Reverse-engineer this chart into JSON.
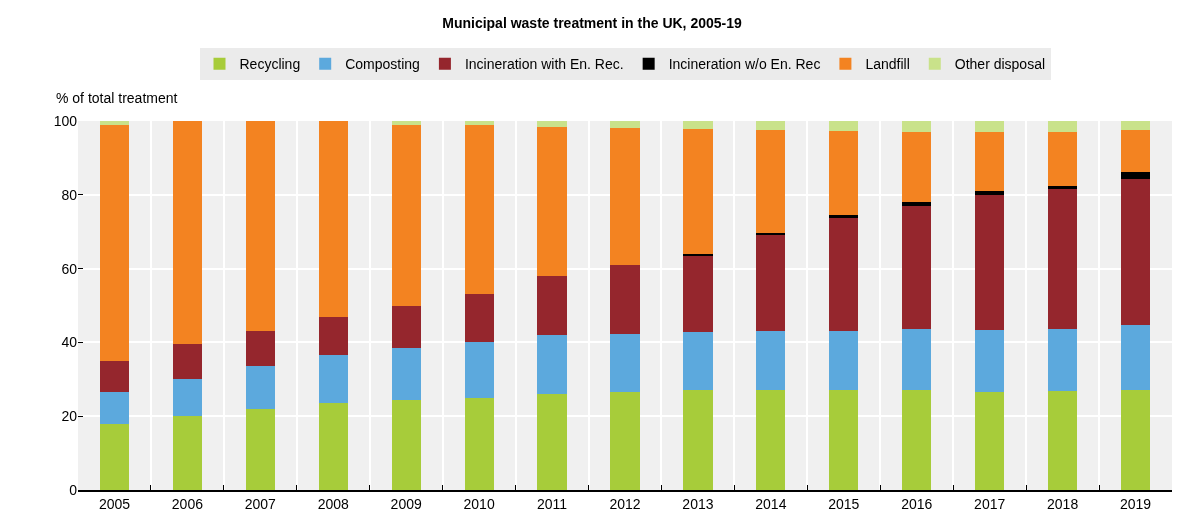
{
  "chart_data": {
    "type": "bar",
    "title": "Municipal waste treatment in the UK, 2005-19",
    "ylabel": "% of total treatment",
    "categories": [
      "2005",
      "2006",
      "2007",
      "2008",
      "2009",
      "2010",
      "2011",
      "2012",
      "2013",
      "2014",
      "2015",
      "2016",
      "2017",
      "2018",
      "2019"
    ],
    "stacked": true,
    "ylim": [
      0,
      100
    ],
    "yticks": [
      0,
      20,
      40,
      60,
      80,
      100
    ],
    "grid": true,
    "legend": "top",
    "series": [
      {
        "name": "Recycling",
        "color": "#a7cc3a",
        "values": [
          18,
          20,
          22,
          23.5,
          24.5,
          25,
          26,
          26.6,
          27.2,
          27.0,
          27.0,
          27.0,
          26.6,
          26.9,
          27.2
        ]
      },
      {
        "name": "Composting",
        "color": "#5ca9dd",
        "values": [
          8.5,
          10,
          11.5,
          13,
          14,
          15,
          16,
          15.8,
          15.6,
          16.1,
          16.1,
          16.6,
          16.8,
          16.8,
          17.5
        ]
      },
      {
        "name": "Incineration with En. Rec.",
        "color": "#95262d",
        "values": [
          8.5,
          9.5,
          9.5,
          10.5,
          11.5,
          13,
          16,
          18.5,
          20.8,
          26.2,
          30.5,
          33.5,
          36.5,
          38.0,
          39.5
        ]
      },
      {
        "name": "Incineration w/o En. Rec",
        "color": "#000000",
        "values": [
          0,
          0,
          0,
          0,
          0,
          0,
          0,
          0,
          0.3,
          0.3,
          0.9,
          0.9,
          1.0,
          0.8,
          2.1
        ]
      },
      {
        "name": "Landfill",
        "color": "#f38321",
        "values": [
          64,
          60.5,
          57,
          53,
          49,
          46,
          40.5,
          37.3,
          33.8,
          27.9,
          22.7,
          19.0,
          16.1,
          14.5,
          11.2
        ]
      },
      {
        "name": "Other disposal",
        "color": "#c9e28a",
        "values": [
          1,
          0,
          0,
          0,
          1,
          1,
          1.5,
          1.8,
          2.3,
          2.5,
          2.8,
          3.0,
          3.0,
          3.0,
          2.5
        ]
      }
    ]
  }
}
